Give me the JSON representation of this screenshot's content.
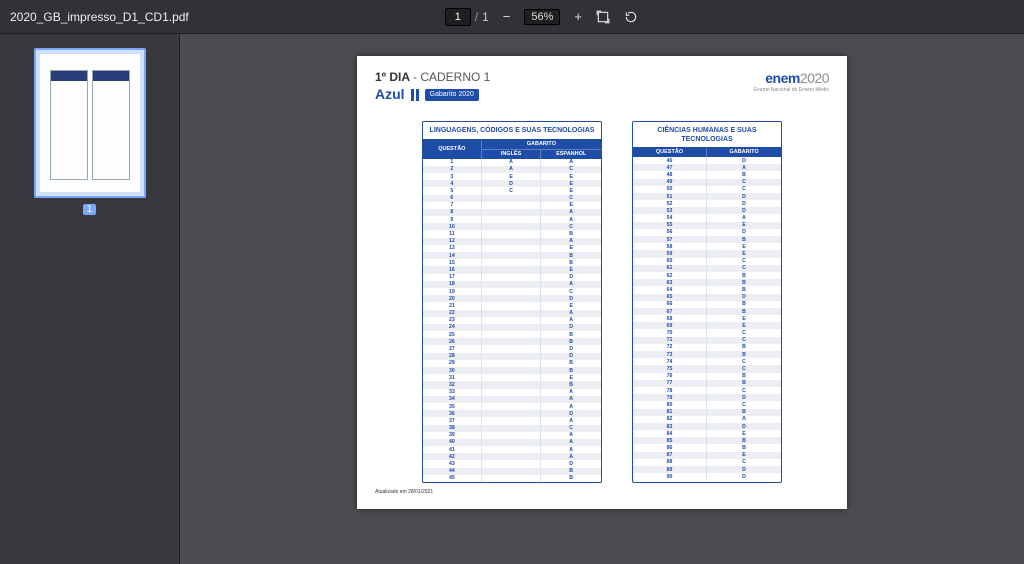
{
  "viewer": {
    "filename": "2020_GB_impresso_D1_CD1.pdf",
    "page_current": "1",
    "page_total": "1",
    "page_sep": "/",
    "zoom_level": "56%",
    "thumb_number": "1"
  },
  "icons": {
    "zoom_out": "−",
    "zoom_in": "+"
  },
  "doc": {
    "dia_prefix": "1º DIA",
    "dia_sep": "- ",
    "caderno": "CADERNO 1",
    "azul": "Azul",
    "gabarito_chip": "Gabarito 2020",
    "enem_left": "enem",
    "enem_right": "2020",
    "enem_sub": "Exame Nacional do Ensino Médio",
    "footnote": "Atualizado em 28/01/2021",
    "table1": {
      "title": "LINGUAGENS, CÓDIGOS E SUAS TECNOLOGIAS",
      "head_q": "QUESTÃO",
      "head_gab": "GABARITO",
      "head_ing": "INGLÊS",
      "head_esp": "ESPANHOL",
      "rows": [
        {
          "q": "1",
          "i": "A",
          "e": "A"
        },
        {
          "q": "2",
          "i": "A",
          "e": "C"
        },
        {
          "q": "3",
          "i": "E",
          "e": "E"
        },
        {
          "q": "4",
          "i": "D",
          "e": "E"
        },
        {
          "q": "5",
          "i": "C",
          "e": "E"
        },
        {
          "q": "6",
          "i": "",
          "e": "C"
        },
        {
          "q": "7",
          "i": "",
          "e": "E"
        },
        {
          "q": "8",
          "i": "",
          "e": "A"
        },
        {
          "q": "9",
          "i": "",
          "e": "A"
        },
        {
          "q": "10",
          "i": "",
          "e": "C"
        },
        {
          "q": "11",
          "i": "",
          "e": "B"
        },
        {
          "q": "12",
          "i": "",
          "e": "A"
        },
        {
          "q": "13",
          "i": "",
          "e": "E"
        },
        {
          "q": "14",
          "i": "",
          "e": "B"
        },
        {
          "q": "15",
          "i": "",
          "e": "B"
        },
        {
          "q": "16",
          "i": "",
          "e": "E"
        },
        {
          "q": "17",
          "i": "",
          "e": "D"
        },
        {
          "q": "18",
          "i": "",
          "e": "A"
        },
        {
          "q": "19",
          "i": "",
          "e": "C"
        },
        {
          "q": "20",
          "i": "",
          "e": "D"
        },
        {
          "q": "21",
          "i": "",
          "e": "E"
        },
        {
          "q": "22",
          "i": "",
          "e": "A"
        },
        {
          "q": "23",
          "i": "",
          "e": "A"
        },
        {
          "q": "24",
          "i": "",
          "e": "D"
        },
        {
          "q": "25",
          "i": "",
          "e": "B"
        },
        {
          "q": "26",
          "i": "",
          "e": "B"
        },
        {
          "q": "27",
          "i": "",
          "e": "D"
        },
        {
          "q": "28",
          "i": "",
          "e": "D"
        },
        {
          "q": "29",
          "i": "",
          "e": "B"
        },
        {
          "q": "30",
          "i": "",
          "e": "B"
        },
        {
          "q": "31",
          "i": "",
          "e": "E"
        },
        {
          "q": "32",
          "i": "",
          "e": "B"
        },
        {
          "q": "33",
          "i": "",
          "e": "A"
        },
        {
          "q": "34",
          "i": "",
          "e": "A"
        },
        {
          "q": "35",
          "i": "",
          "e": "A"
        },
        {
          "q": "36",
          "i": "",
          "e": "D"
        },
        {
          "q": "37",
          "i": "",
          "e": "A"
        },
        {
          "q": "38",
          "i": "",
          "e": "C"
        },
        {
          "q": "39",
          "i": "",
          "e": "A"
        },
        {
          "q": "40",
          "i": "",
          "e": "A"
        },
        {
          "q": "41",
          "i": "",
          "e": "A"
        },
        {
          "q": "42",
          "i": "",
          "e": "A"
        },
        {
          "q": "43",
          "i": "",
          "e": "D"
        },
        {
          "q": "44",
          "i": "",
          "e": "B"
        },
        {
          "q": "45",
          "i": "",
          "e": "B"
        }
      ]
    },
    "table2": {
      "title": "CIÊNCIAS HUMANAS E SUAS TECNOLOGIAS",
      "head_q": "QUESTÃO",
      "head_gab": "GABARITO",
      "rows": [
        {
          "q": "46",
          "g": "D"
        },
        {
          "q": "47",
          "g": "A"
        },
        {
          "q": "48",
          "g": "B"
        },
        {
          "q": "49",
          "g": "C"
        },
        {
          "q": "50",
          "g": "C"
        },
        {
          "q": "51",
          "g": "D"
        },
        {
          "q": "52",
          "g": "D"
        },
        {
          "q": "53",
          "g": "D"
        },
        {
          "q": "54",
          "g": "A"
        },
        {
          "q": "55",
          "g": "E"
        },
        {
          "q": "56",
          "g": "D"
        },
        {
          "q": "57",
          "g": "B"
        },
        {
          "q": "58",
          "g": "E"
        },
        {
          "q": "59",
          "g": "E"
        },
        {
          "q": "60",
          "g": "C"
        },
        {
          "q": "61",
          "g": "C"
        },
        {
          "q": "62",
          "g": "B"
        },
        {
          "q": "63",
          "g": "B"
        },
        {
          "q": "64",
          "g": "B"
        },
        {
          "q": "65",
          "g": "D"
        },
        {
          "q": "66",
          "g": "B"
        },
        {
          "q": "67",
          "g": "B"
        },
        {
          "q": "68",
          "g": "E"
        },
        {
          "q": "69",
          "g": "E"
        },
        {
          "q": "70",
          "g": "C"
        },
        {
          "q": "71",
          "g": "C"
        },
        {
          "q": "72",
          "g": "B"
        },
        {
          "q": "73",
          "g": "B"
        },
        {
          "q": "74",
          "g": "C"
        },
        {
          "q": "75",
          "g": "C"
        },
        {
          "q": "76",
          "g": "B"
        },
        {
          "q": "77",
          "g": "B"
        },
        {
          "q": "78",
          "g": "C"
        },
        {
          "q": "79",
          "g": "D"
        },
        {
          "q": "80",
          "g": "C"
        },
        {
          "q": "81",
          "g": "B"
        },
        {
          "q": "82",
          "g": "A"
        },
        {
          "q": "83",
          "g": "D"
        },
        {
          "q": "84",
          "g": "E"
        },
        {
          "q": "85",
          "g": "B"
        },
        {
          "q": "86",
          "g": "B"
        },
        {
          "q": "87",
          "g": "E"
        },
        {
          "q": "88",
          "g": "C"
        },
        {
          "q": "89",
          "g": "D"
        },
        {
          "q": "90",
          "g": "D"
        }
      ]
    }
  }
}
